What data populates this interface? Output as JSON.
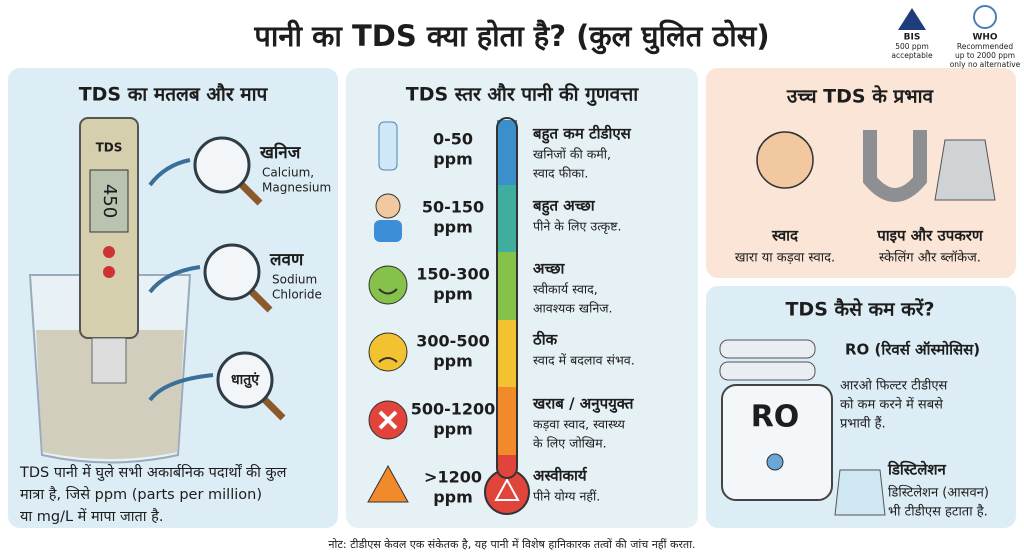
{
  "title": "पानी का TDS क्या होता है? (कुल घुलित ठोस)",
  "badges": [
    {
      "name": "BIS",
      "lines": [
        "500 ppm",
        "acceptable"
      ]
    },
    {
      "name": "WHO",
      "lines": [
        "Recommended",
        "up to 2000 ppm",
        "only no alternative"
      ]
    }
  ],
  "meaning": {
    "title": "TDS का मतलब और माप",
    "meter_label": "TDS",
    "display": "450",
    "items": [
      {
        "label": "खनिज",
        "sub": [
          "Calcium,",
          "Magnesium"
        ]
      },
      {
        "label": "लवण",
        "sub": [
          "Sodium",
          "Chloride"
        ]
      },
      {
        "label": "धातुएं",
        "sub": []
      }
    ],
    "description": [
      "TDS पानी में घुले सभी अकार्बनिक पदार्थों की कुल",
      "मात्रा है, जिसे ppm (parts per million)",
      "या mg/L में मापा जाता है."
    ]
  },
  "levels": {
    "title": "TDS स्तर और पानी की गुणवत्ता",
    "rows": [
      {
        "range": "0-50",
        "unit": "ppm",
        "title": "बहुत कम टीडीएस",
        "desc": [
          "खनिजों की कमी,",
          "स्वाद फीका."
        ],
        "color": "#3b8fca"
      },
      {
        "range": "50-150",
        "unit": "ppm",
        "title": "बहुत अच्छा",
        "desc": [
          "पीने के लिए उत्कृष्ट."
        ],
        "color": "#3fae9f"
      },
      {
        "range": "150-300",
        "unit": "ppm",
        "title": "अच्छा",
        "desc": [
          "स्वीकार्य स्वाद,",
          "आवश्यक खनिज."
        ],
        "color": "#86c24a"
      },
      {
        "range": "300-500",
        "unit": "ppm",
        "title": "ठीक",
        "desc": [
          "स्वाद में बदलाव संभव."
        ],
        "color": "#f2c230"
      },
      {
        "range": "500-1200",
        "unit": "ppm",
        "title": "खराब / अनुपयुक्त",
        "desc": [
          "कड़वा स्वाद, स्वास्थ्य",
          "के लिए जोखिम."
        ],
        "color": "#f08a2a"
      },
      {
        "range": ">1200",
        "unit": "ppm",
        "title": "अस्वीकार्य",
        "desc": [
          "पीने योग्य नहीं."
        ],
        "color": "#e0443a"
      }
    ]
  },
  "effects": {
    "title": "उच्च TDS के प्रभाव",
    "items": [
      {
        "title": "स्वाद",
        "desc": "खारा या कड़वा स्वाद."
      },
      {
        "title": "पाइप और उपकरण",
        "desc": "स्केलिंग और ब्लॉकेज."
      }
    ]
  },
  "reduce": {
    "title": "TDS कैसे कम करें?",
    "ro": {
      "label": "RO",
      "title": "RO (रिवर्स ऑस्मोसिस)",
      "desc": [
        "आरओ फिल्टर टीडीएस",
        "को कम करने में सबसे",
        "प्रभावी हैं."
      ]
    },
    "distillation": {
      "title": "डिस्टिलेशन",
      "desc": [
        "डिस्टिलेशन (आसवन)",
        "भी टीडीएस हटाता है."
      ]
    }
  },
  "note": "नोट: टीडीएस केवल एक संकेतक है, यह पानी में विशेष हानिकारक तत्वों की जांच नहीं करता."
}
